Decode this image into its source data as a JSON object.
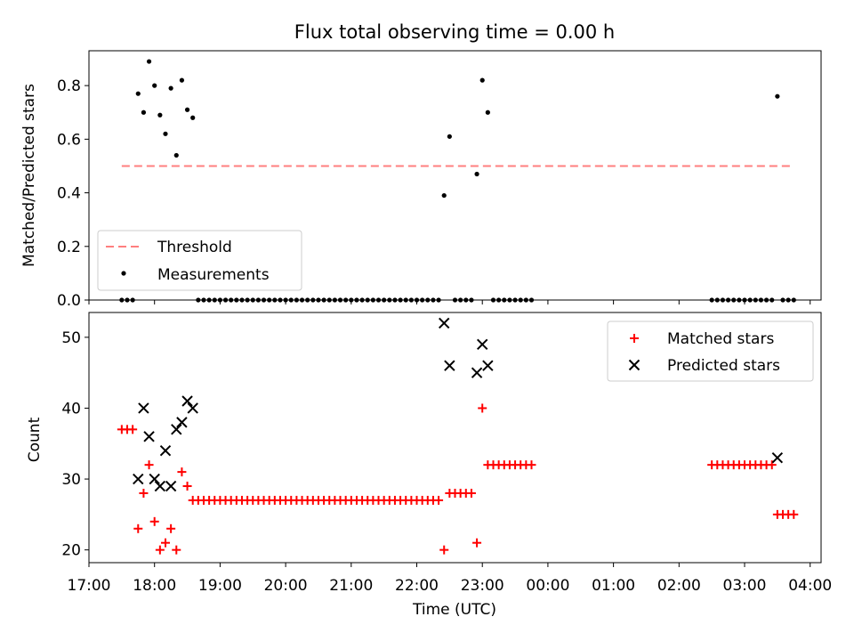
{
  "title": "Flux total observing time = 0.00 h",
  "colors": {
    "threshold": "#ff7f7f",
    "measurement": "#000000",
    "matched": "#ff0000",
    "predicted": "#000000"
  },
  "chart_data": [
    {
      "type": "scatter",
      "ylabel": "Matched/Predicted stars",
      "xlim": [
        "17:00",
        "04:10"
      ],
      "ylim": [
        0,
        0.93
      ],
      "yticks": [
        "0.0",
        "0.2",
        "0.4",
        "0.6",
        "0.8"
      ],
      "ytick_values": [
        0,
        0.2,
        0.4,
        0.6,
        0.8
      ],
      "grid": false,
      "legend_position": "lower-left",
      "legend": [
        {
          "label": "Threshold",
          "style": "dashed-line"
        },
        {
          "label": "Measurements",
          "style": "dot"
        }
      ],
      "threshold": {
        "value": 0.5,
        "x_start": "17:30",
        "x_end": "03:45"
      },
      "measurements": [
        {
          "x": "17:30",
          "y": 0
        },
        {
          "x": "17:35",
          "y": 0
        },
        {
          "x": "17:40",
          "y": 0
        },
        {
          "x": "17:45",
          "y": 0.77
        },
        {
          "x": "17:50",
          "y": 0.7
        },
        {
          "x": "17:55",
          "y": 0.89
        },
        {
          "x": "18:00",
          "y": 0.8
        },
        {
          "x": "18:05",
          "y": 0.69
        },
        {
          "x": "18:10",
          "y": 0.62
        },
        {
          "x": "18:15",
          "y": 0.79
        },
        {
          "x": "18:20",
          "y": 0.54
        },
        {
          "x": "18:25",
          "y": 0.82
        },
        {
          "x": "18:30",
          "y": 0.71
        },
        {
          "x": "18:35",
          "y": 0.68
        },
        {
          "x": "18:40",
          "y": 0
        },
        {
          "x": "18:45",
          "y": 0
        },
        {
          "x": "18:50",
          "y": 0
        },
        {
          "x": "18:55",
          "y": 0
        },
        {
          "x": "19:00",
          "y": 0
        },
        {
          "x": "19:05",
          "y": 0
        },
        {
          "x": "19:10",
          "y": 0
        },
        {
          "x": "19:15",
          "y": 0
        },
        {
          "x": "19:20",
          "y": 0
        },
        {
          "x": "19:25",
          "y": 0
        },
        {
          "x": "19:30",
          "y": 0
        },
        {
          "x": "19:35",
          "y": 0
        },
        {
          "x": "19:40",
          "y": 0
        },
        {
          "x": "19:45",
          "y": 0
        },
        {
          "x": "19:50",
          "y": 0
        },
        {
          "x": "19:55",
          "y": 0
        },
        {
          "x": "20:00",
          "y": 0
        },
        {
          "x": "20:05",
          "y": 0
        },
        {
          "x": "20:10",
          "y": 0
        },
        {
          "x": "20:15",
          "y": 0
        },
        {
          "x": "20:20",
          "y": 0
        },
        {
          "x": "20:25",
          "y": 0
        },
        {
          "x": "20:30",
          "y": 0
        },
        {
          "x": "20:35",
          "y": 0
        },
        {
          "x": "20:40",
          "y": 0
        },
        {
          "x": "20:45",
          "y": 0
        },
        {
          "x": "20:50",
          "y": 0
        },
        {
          "x": "20:55",
          "y": 0
        },
        {
          "x": "21:00",
          "y": 0
        },
        {
          "x": "21:05",
          "y": 0
        },
        {
          "x": "21:10",
          "y": 0
        },
        {
          "x": "21:15",
          "y": 0
        },
        {
          "x": "21:20",
          "y": 0
        },
        {
          "x": "21:25",
          "y": 0
        },
        {
          "x": "21:30",
          "y": 0
        },
        {
          "x": "21:35",
          "y": 0
        },
        {
          "x": "21:40",
          "y": 0
        },
        {
          "x": "21:45",
          "y": 0
        },
        {
          "x": "21:50",
          "y": 0
        },
        {
          "x": "21:55",
          "y": 0
        },
        {
          "x": "22:00",
          "y": 0
        },
        {
          "x": "22:05",
          "y": 0
        },
        {
          "x": "22:10",
          "y": 0
        },
        {
          "x": "22:15",
          "y": 0
        },
        {
          "x": "22:20",
          "y": 0
        },
        {
          "x": "22:25",
          "y": 0.39
        },
        {
          "x": "22:30",
          "y": 0.61
        },
        {
          "x": "22:35",
          "y": 0
        },
        {
          "x": "22:40",
          "y": 0
        },
        {
          "x": "22:45",
          "y": 0
        },
        {
          "x": "22:50",
          "y": 0
        },
        {
          "x": "22:55",
          "y": 0.47
        },
        {
          "x": "23:00",
          "y": 0.82
        },
        {
          "x": "23:05",
          "y": 0.7
        },
        {
          "x": "23:10",
          "y": 0
        },
        {
          "x": "23:15",
          "y": 0
        },
        {
          "x": "23:20",
          "y": 0
        },
        {
          "x": "23:25",
          "y": 0
        },
        {
          "x": "23:30",
          "y": 0
        },
        {
          "x": "23:35",
          "y": 0
        },
        {
          "x": "23:40",
          "y": 0
        },
        {
          "x": "23:45",
          "y": 0
        },
        {
          "x": "02:30",
          "y": 0
        },
        {
          "x": "02:35",
          "y": 0
        },
        {
          "x": "02:40",
          "y": 0
        },
        {
          "x": "02:45",
          "y": 0
        },
        {
          "x": "02:50",
          "y": 0
        },
        {
          "x": "02:55",
          "y": 0
        },
        {
          "x": "03:00",
          "y": 0
        },
        {
          "x": "03:05",
          "y": 0
        },
        {
          "x": "03:10",
          "y": 0
        },
        {
          "x": "03:15",
          "y": 0
        },
        {
          "x": "03:20",
          "y": 0
        },
        {
          "x": "03:25",
          "y": 0
        },
        {
          "x": "03:30",
          "y": 0.76
        },
        {
          "x": "03:35",
          "y": 0
        },
        {
          "x": "03:40",
          "y": 0
        },
        {
          "x": "03:45",
          "y": 0
        }
      ]
    },
    {
      "type": "scatter",
      "ylabel": "Count",
      "xlabel": "Time (UTC)",
      "xlim": [
        "17:00",
        "04:10"
      ],
      "ylim": [
        18.2,
        53.5
      ],
      "xticks": [
        "17:00",
        "18:00",
        "19:00",
        "20:00",
        "21:00",
        "22:00",
        "23:00",
        "00:00",
        "01:00",
        "02:00",
        "03:00",
        "04:00"
      ],
      "yticks": [
        "20",
        "30",
        "40",
        "50"
      ],
      "ytick_values": [
        20,
        30,
        40,
        50
      ],
      "grid": false,
      "legend_position": "upper-right",
      "legend": [
        {
          "label": "Matched stars",
          "marker": "plus"
        },
        {
          "label": "Predicted stars",
          "marker": "x"
        }
      ],
      "matched": [
        {
          "x": "17:30",
          "y": 37
        },
        {
          "x": "17:35",
          "y": 37
        },
        {
          "x": "17:40",
          "y": 37
        },
        {
          "x": "17:45",
          "y": 23
        },
        {
          "x": "17:50",
          "y": 28
        },
        {
          "x": "17:55",
          "y": 32
        },
        {
          "x": "18:00",
          "y": 24
        },
        {
          "x": "18:05",
          "y": 20
        },
        {
          "x": "18:10",
          "y": 21
        },
        {
          "x": "18:15",
          "y": 23
        },
        {
          "x": "18:20",
          "y": 20
        },
        {
          "x": "18:25",
          "y": 31
        },
        {
          "x": "18:30",
          "y": 29
        },
        {
          "x": "18:35",
          "y": 27
        },
        {
          "x": "18:40",
          "y": 27
        },
        {
          "x": "18:45",
          "y": 27
        },
        {
          "x": "18:50",
          "y": 27
        },
        {
          "x": "18:55",
          "y": 27
        },
        {
          "x": "19:00",
          "y": 27
        },
        {
          "x": "19:05",
          "y": 27
        },
        {
          "x": "19:10",
          "y": 27
        },
        {
          "x": "19:15",
          "y": 27
        },
        {
          "x": "19:20",
          "y": 27
        },
        {
          "x": "19:25",
          "y": 27
        },
        {
          "x": "19:30",
          "y": 27
        },
        {
          "x": "19:35",
          "y": 27
        },
        {
          "x": "19:40",
          "y": 27
        },
        {
          "x": "19:45",
          "y": 27
        },
        {
          "x": "19:50",
          "y": 27
        },
        {
          "x": "19:55",
          "y": 27
        },
        {
          "x": "20:00",
          "y": 27
        },
        {
          "x": "20:05",
          "y": 27
        },
        {
          "x": "20:10",
          "y": 27
        },
        {
          "x": "20:15",
          "y": 27
        },
        {
          "x": "20:20",
          "y": 27
        },
        {
          "x": "20:25",
          "y": 27
        },
        {
          "x": "20:30",
          "y": 27
        },
        {
          "x": "20:35",
          "y": 27
        },
        {
          "x": "20:40",
          "y": 27
        },
        {
          "x": "20:45",
          "y": 27
        },
        {
          "x": "20:50",
          "y": 27
        },
        {
          "x": "20:55",
          "y": 27
        },
        {
          "x": "21:00",
          "y": 27
        },
        {
          "x": "21:05",
          "y": 27
        },
        {
          "x": "21:10",
          "y": 27
        },
        {
          "x": "21:15",
          "y": 27
        },
        {
          "x": "21:20",
          "y": 27
        },
        {
          "x": "21:25",
          "y": 27
        },
        {
          "x": "21:30",
          "y": 27
        },
        {
          "x": "21:35",
          "y": 27
        },
        {
          "x": "21:40",
          "y": 27
        },
        {
          "x": "21:45",
          "y": 27
        },
        {
          "x": "21:50",
          "y": 27
        },
        {
          "x": "21:55",
          "y": 27
        },
        {
          "x": "22:00",
          "y": 27
        },
        {
          "x": "22:05",
          "y": 27
        },
        {
          "x": "22:10",
          "y": 27
        },
        {
          "x": "22:15",
          "y": 27
        },
        {
          "x": "22:20",
          "y": 27
        },
        {
          "x": "22:25",
          "y": 20
        },
        {
          "x": "22:30",
          "y": 28
        },
        {
          "x": "22:35",
          "y": 28
        },
        {
          "x": "22:40",
          "y": 28
        },
        {
          "x": "22:45",
          "y": 28
        },
        {
          "x": "22:50",
          "y": 28
        },
        {
          "x": "22:55",
          "y": 21
        },
        {
          "x": "23:00",
          "y": 40
        },
        {
          "x": "23:05",
          "y": 32
        },
        {
          "x": "23:10",
          "y": 32
        },
        {
          "x": "23:15",
          "y": 32
        },
        {
          "x": "23:20",
          "y": 32
        },
        {
          "x": "23:25",
          "y": 32
        },
        {
          "x": "23:30",
          "y": 32
        },
        {
          "x": "23:35",
          "y": 32
        },
        {
          "x": "23:40",
          "y": 32
        },
        {
          "x": "23:45",
          "y": 32
        },
        {
          "x": "02:30",
          "y": 32
        },
        {
          "x": "02:35",
          "y": 32
        },
        {
          "x": "02:40",
          "y": 32
        },
        {
          "x": "02:45",
          "y": 32
        },
        {
          "x": "02:50",
          "y": 32
        },
        {
          "x": "02:55",
          "y": 32
        },
        {
          "x": "03:00",
          "y": 32
        },
        {
          "x": "03:05",
          "y": 32
        },
        {
          "x": "03:10",
          "y": 32
        },
        {
          "x": "03:15",
          "y": 32
        },
        {
          "x": "03:20",
          "y": 32
        },
        {
          "x": "03:25",
          "y": 32
        },
        {
          "x": "03:30",
          "y": 25
        },
        {
          "x": "03:35",
          "y": 25
        },
        {
          "x": "03:40",
          "y": 25
        },
        {
          "x": "03:45",
          "y": 25
        }
      ],
      "predicted": [
        {
          "x": "17:45",
          "y": 30
        },
        {
          "x": "17:50",
          "y": 40
        },
        {
          "x": "17:55",
          "y": 36
        },
        {
          "x": "18:00",
          "y": 30
        },
        {
          "x": "18:05",
          "y": 29
        },
        {
          "x": "18:10",
          "y": 34
        },
        {
          "x": "18:15",
          "y": 29
        },
        {
          "x": "18:20",
          "y": 37
        },
        {
          "x": "18:25",
          "y": 38
        },
        {
          "x": "18:30",
          "y": 41
        },
        {
          "x": "18:35",
          "y": 40
        },
        {
          "x": "22:25",
          "y": 52
        },
        {
          "x": "22:30",
          "y": 46
        },
        {
          "x": "22:55",
          "y": 45
        },
        {
          "x": "23:00",
          "y": 49
        },
        {
          "x": "23:05",
          "y": 46
        },
        {
          "x": "03:30",
          "y": 33
        }
      ]
    }
  ]
}
